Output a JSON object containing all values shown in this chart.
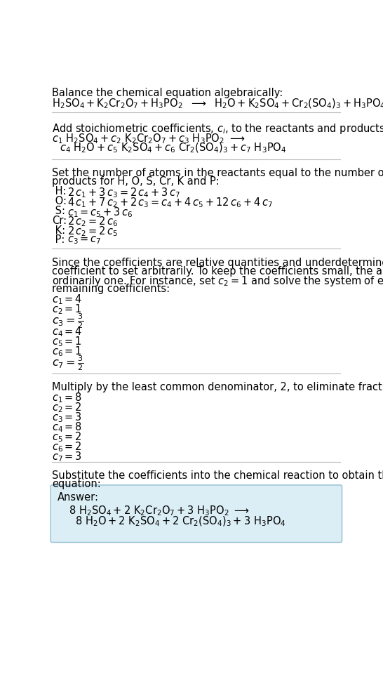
{
  "bg_color": "#ffffff",
  "text_color": "#000000",
  "answer_bg_color": "#dceef5",
  "answer_border_color": "#90bdd0",
  "font_size": 10.5,
  "sections": {
    "eq1": "$\\mathregular{H_2SO_4 + K_2Cr_2O_7 + H_3PO_2}$ → $\\mathregular{H_2O + K_2SO_4 + Cr_2(SO_4)_3 + H_3PO_4}$",
    "eq2a": "$c_1\\,\\mathregular{H_2SO_4} + c_2\\,\\mathregular{K_2Cr_2O_7} + c_3\\,\\mathregular{H_3PO_2}$ →",
    "eq2b": "   $c_4\\,\\mathregular{H_2O} + c_5\\,\\mathregular{K_2SO_4} + c_6\\,\\mathregular{Cr_2(SO_4)_3} + c_7\\,\\mathregular{H_3PO_4}$"
  }
}
